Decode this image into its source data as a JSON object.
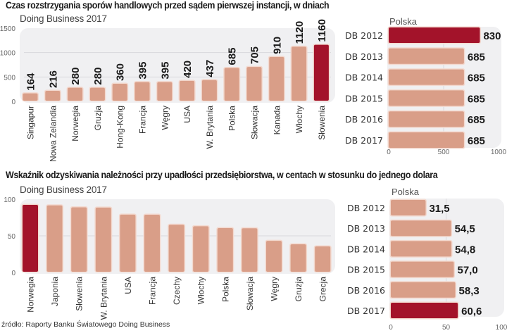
{
  "colors": {
    "bar": "#d99e88",
    "highlight": "#a3132a",
    "bar_border": "#f3d9cf",
    "panel_bg": "#f0f0f2",
    "grid": "#d8d8dc"
  },
  "source": "źródło: Raporty Banku Światowego Doing Business",
  "chart_data": [
    {
      "id": "court_days_countries",
      "type": "bar",
      "orientation": "vertical",
      "title": "Czas rozstrzygania sporów handlowych przed sądem pierwszej instancji, w dniach",
      "subtitle": "Doing Business 2017",
      "xlabel": "",
      "ylabel": "",
      "ylim": [
        0,
        1500
      ],
      "yticks": [
        "0",
        "500",
        "1000",
        "1500"
      ],
      "ytick_values": [
        0,
        500,
        1000,
        1500
      ],
      "grid": true,
      "data_labels": true,
      "categories": [
        "Singapur",
        "Nowa Zelandia",
        "Norwegia",
        "Gruzja",
        "Hong-Kong",
        "Francja",
        "Węgry",
        "USA",
        "W. Brytania",
        "Polska",
        "Słowacja",
        "Kanada",
        "Włochy",
        "Słowenia"
      ],
      "values": [
        164,
        216,
        280,
        280,
        360,
        395,
        395,
        420,
        437,
        685,
        705,
        910,
        1120,
        1160
      ],
      "value_labels": [
        "164",
        "216",
        "280",
        "280",
        "360",
        "395",
        "395",
        "420",
        "437",
        "685",
        "705",
        "910",
        "1120",
        "1160"
      ],
      "highlight": [
        "Słowenia"
      ]
    },
    {
      "id": "court_days_poland",
      "type": "bar",
      "orientation": "horizontal",
      "title": "Polska",
      "xlim": [
        0,
        1000
      ],
      "xticks": [
        "0",
        "500",
        "1000"
      ],
      "xtick_values": [
        0,
        500,
        1000
      ],
      "grid": true,
      "data_labels": true,
      "categories": [
        "DB 2012",
        "DB 2013",
        "DB 2014",
        "DB 2015",
        "DB 2016",
        "DB 2017"
      ],
      "values": [
        830,
        685,
        685,
        685,
        685,
        685
      ],
      "value_labels": [
        "830",
        "685",
        "685",
        "685",
        "685",
        "685"
      ],
      "highlight": [
        "DB 2012"
      ]
    },
    {
      "id": "recovery_rate_countries",
      "type": "bar",
      "orientation": "vertical",
      "title": "Wskaźnik odzyskiwania należności przy upadłości przedsiębiorstwa, w centach w stosunku do jednego dolara",
      "subtitle": "Doing Business 2017",
      "xlabel": "",
      "ylabel": "",
      "ylim": [
        0,
        100
      ],
      "yticks": [
        "0",
        "50",
        "100"
      ],
      "ytick_values": [
        0,
        50,
        100
      ],
      "grid": true,
      "data_labels": false,
      "categories": [
        "Norwegia",
        "Japonia",
        "Słowenia",
        "W. Brytania",
        "USA",
        "Francja",
        "Czechy",
        "Włochy",
        "Polska",
        "Słowacja",
        "Węgry",
        "Gruzja",
        "Grecja"
      ],
      "values": [
        92.3,
        91.6,
        89.0,
        88.6,
        79.0,
        78.8,
        65.2,
        63.1,
        60.6,
        60.3,
        43.1,
        38.5,
        35.6
      ],
      "highlight": [
        "Norwegia"
      ]
    },
    {
      "id": "recovery_rate_poland",
      "type": "bar",
      "orientation": "horizontal",
      "title": "Polska",
      "xlim": [
        0,
        100
      ],
      "xticks": [
        "0",
        "50",
        "100"
      ],
      "xtick_values": [
        0,
        50,
        100
      ],
      "grid": true,
      "data_labels": true,
      "categories": [
        "DB 2012",
        "DB 2013",
        "DB 2014",
        "DB 2015",
        "DB 2016",
        "DB 2017"
      ],
      "values": [
        31.5,
        54.5,
        54.8,
        57.0,
        58.3,
        60.6
      ],
      "value_labels": [
        "31,5",
        "54,5",
        "54,8",
        "57,0",
        "58,3",
        "60,6"
      ],
      "highlight": [
        "DB 2017"
      ]
    }
  ]
}
